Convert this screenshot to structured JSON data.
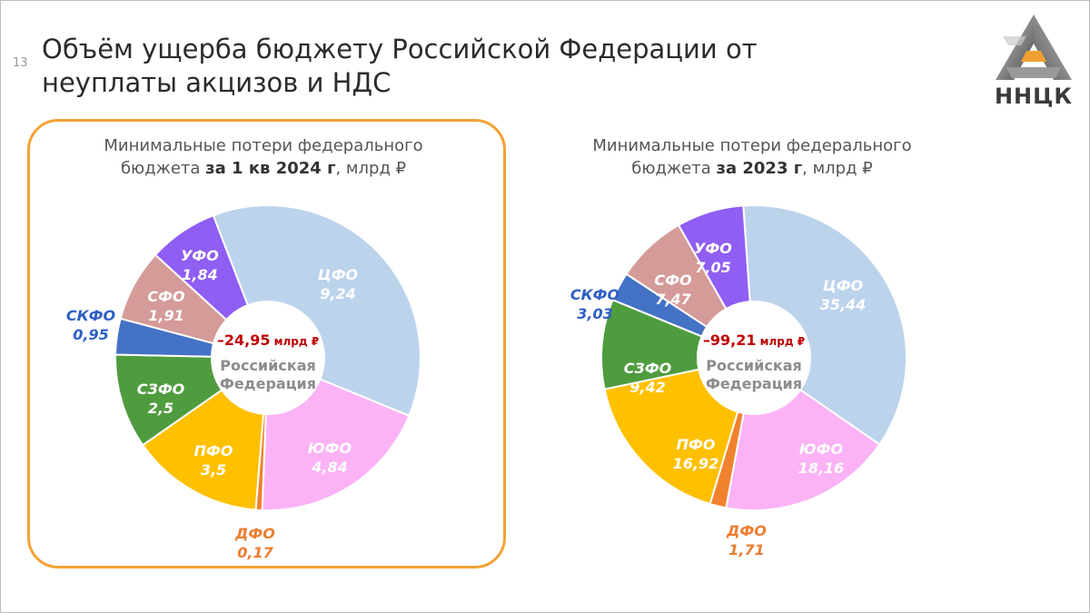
{
  "slide_number": "13",
  "title_line1": "Объём ущерба бюджету Российской Федерации от",
  "title_line2": "неуплаты акцизов и НДС",
  "logo_text": "ННЦК",
  "chart_data": [
    {
      "type": "pie",
      "title_line1": "Минимальные потери федерального",
      "title_line2_pre": "бюджета ",
      "title_line2_bold": "за 1 кв 2024 г",
      "title_line2_post": ", млрд ₽",
      "center_total": "–24,95",
      "center_unit": " млрд ₽",
      "center_label1": "Российская",
      "center_label2": "Федерация",
      "highlighted": true,
      "slices": [
        {
          "name": "ЦФО",
          "value": 9.24,
          "label": "9,24",
          "color": "#bcd3ec"
        },
        {
          "name": "ЮФО",
          "value": 4.84,
          "label": "4,84",
          "color": "#fbb3f6"
        },
        {
          "name": "ДФО",
          "value": 0.17,
          "label": "0,17",
          "color": "#f0822e"
        },
        {
          "name": "ПФО",
          "value": 3.5,
          "label": "3,5",
          "color": "#ffc000"
        },
        {
          "name": "СЗФО",
          "value": 2.5,
          "label": "2,5",
          "color": "#4f9c3f"
        },
        {
          "name": "СКФО",
          "value": 0.95,
          "label": "0,95",
          "color": "#4472c4"
        },
        {
          "name": "СФО",
          "value": 1.91,
          "label": "1,91",
          "color": "#d49b99"
        },
        {
          "name": "УФО",
          "value": 1.84,
          "label": "1,84",
          "color": "#8f5ef3"
        }
      ]
    },
    {
      "type": "pie",
      "title_line1": "Минимальные потери федерального",
      "title_line2_pre": "бюджета ",
      "title_line2_bold": "за 2023 г",
      "title_line2_post": ", млрд ₽",
      "center_total": "–99,21",
      "center_unit": " млрд ₽",
      "center_label1": "Российская",
      "center_label2": "Федерация",
      "highlighted": false,
      "slices": [
        {
          "name": "ЦФО",
          "value": 35.44,
          "label": "35,44",
          "color": "#bcd3ec"
        },
        {
          "name": "ЮФО",
          "value": 18.16,
          "label": "18,16",
          "color": "#fbb3f6"
        },
        {
          "name": "ДФО",
          "value": 1.71,
          "label": "1,71",
          "color": "#f0822e"
        },
        {
          "name": "ПФО",
          "value": 16.92,
          "label": "16,92",
          "color": "#ffc000"
        },
        {
          "name": "СЗФО",
          "value": 9.42,
          "label": "9,42",
          "color": "#4f9c3f"
        },
        {
          "name": "СКФО",
          "value": 3.03,
          "label": "3,03",
          "color": "#4472c4"
        },
        {
          "name": "СФО",
          "value": 7.47,
          "label": "7,47",
          "color": "#d49b99"
        },
        {
          "name": "УФО",
          "value": 7.05,
          "label": "7,05",
          "color": "#8f5ef3"
        }
      ]
    }
  ],
  "colors": {
    "total_red": "#c00000",
    "center_grey": "#8c8c8c",
    "highlight_orange": "#f4a236",
    "outside_blue": "#2f5fc4",
    "outside_orange": "#ed7d31"
  }
}
